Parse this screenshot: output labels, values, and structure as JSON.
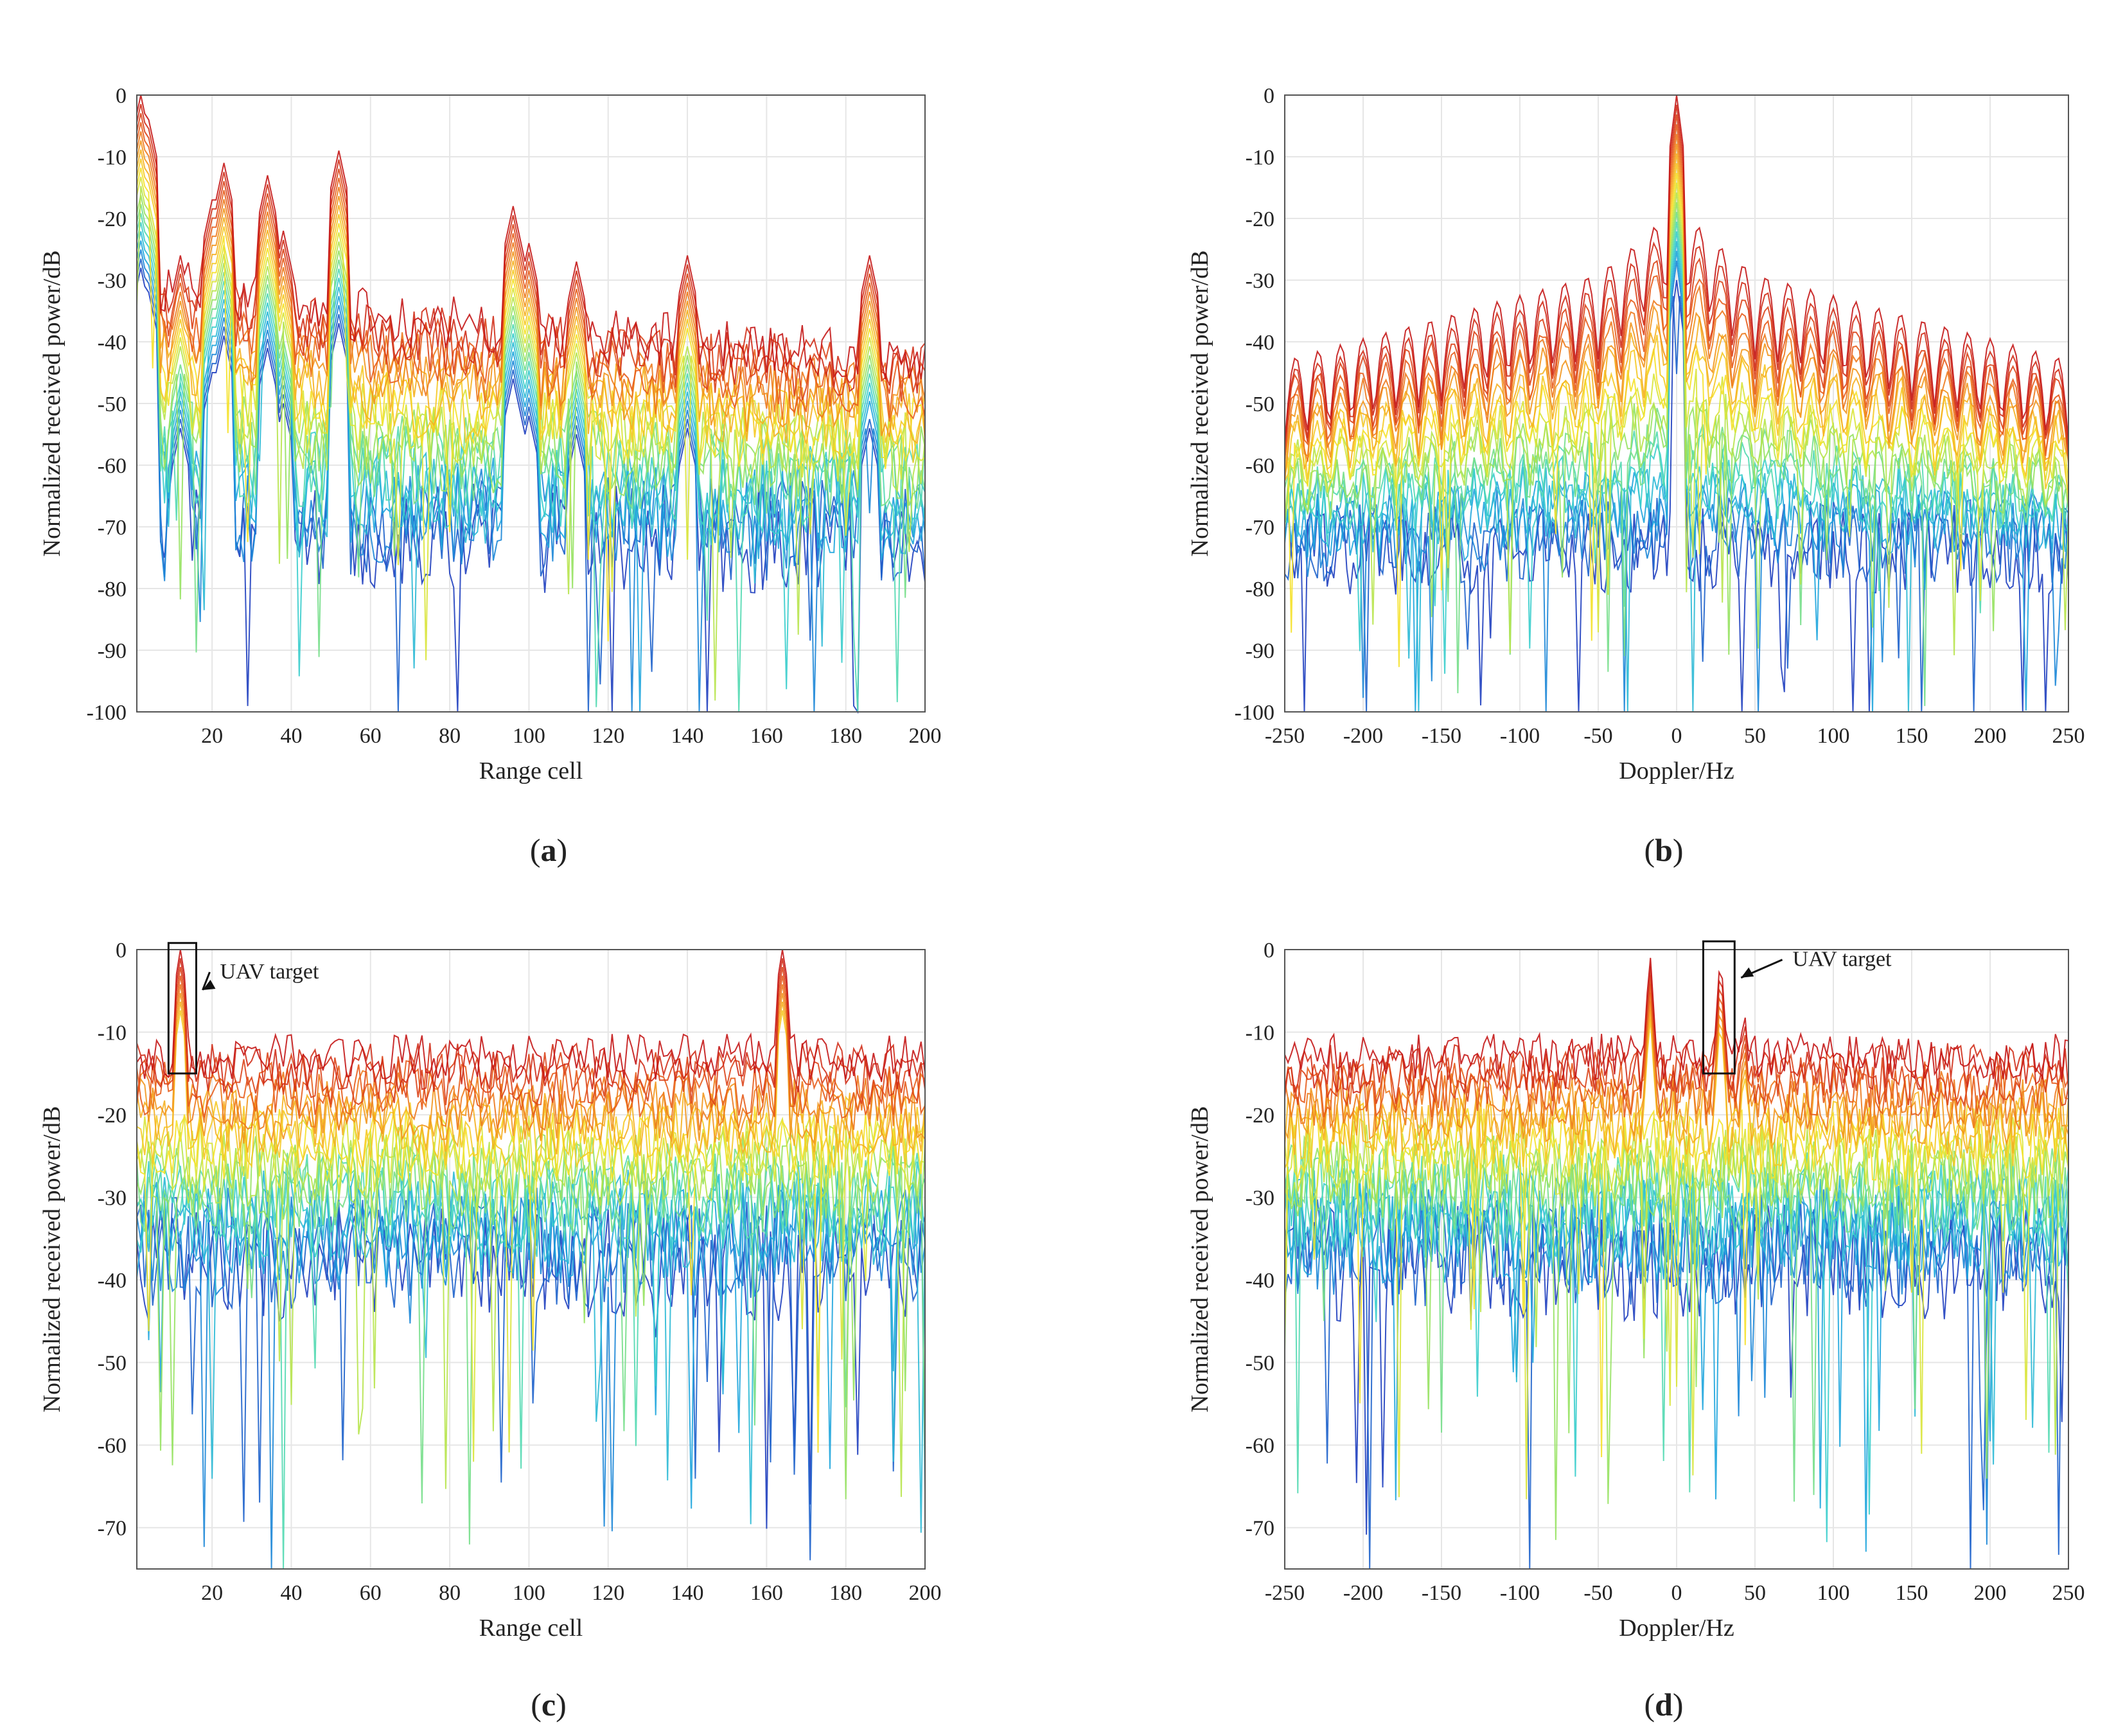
{
  "figure": {
    "panel_count": 4
  },
  "chart_data": [
    {
      "type": "line",
      "panel_label": "a",
      "xlabel": "Range cell",
      "ylabel": "Normalized received power/dB",
      "xlim": [
        1,
        200
      ],
      "ylim": [
        -100,
        0
      ],
      "xticks": [
        20,
        40,
        60,
        80,
        100,
        120,
        140,
        160,
        180,
        200
      ],
      "yticks": [
        0,
        -10,
        -20,
        -30,
        -40,
        -50,
        -60,
        -70,
        -80,
        -90,
        -100
      ],
      "series_count": 20,
      "noise_floor_db": -62,
      "noise_spread_db": 18,
      "peaks": [
        {
          "x": 2,
          "y": 0
        },
        {
          "x": 4,
          "y": -4
        },
        {
          "x": 12,
          "y": -26
        },
        {
          "x": 20,
          "y": -17
        },
        {
          "x": 23,
          "y": -11
        },
        {
          "x": 34,
          "y": -13
        },
        {
          "x": 38,
          "y": -22
        },
        {
          "x": 52,
          "y": -9
        },
        {
          "x": 96,
          "y": -18
        },
        {
          "x": 100,
          "y": -24
        },
        {
          "x": 112,
          "y": -27
        },
        {
          "x": 140,
          "y": -26
        },
        {
          "x": 186,
          "y": -26
        }
      ],
      "floor_profile": [
        [
          1,
          -30
        ],
        [
          60,
          -36
        ],
        [
          200,
          -43
        ]
      ],
      "colors": [
        "#1f3fbf",
        "#1a9fe0",
        "#3ed6c8",
        "#9be35a",
        "#f5e52a",
        "#f5a21d",
        "#e5541b",
        "#c41616"
      ]
    },
    {
      "type": "line",
      "panel_label": "b",
      "xlabel": "Doppler/Hz",
      "ylabel": "Normalized received power/dB",
      "xlim": [
        -250,
        250
      ],
      "ylim": [
        -100,
        0
      ],
      "xticks": [
        -250,
        -200,
        -150,
        -100,
        -50,
        0,
        50,
        100,
        150,
        200,
        250
      ],
      "yticks": [
        0,
        -10,
        -20,
        -30,
        -40,
        -50,
        -60,
        -70,
        -80,
        -90,
        -100
      ],
      "series_count": 20,
      "main_peak": {
        "x": 0,
        "y": 0
      },
      "sidelobe_spacing_hz": 14.3,
      "sidelobe_envelope": [
        [
          -250,
          -43
        ],
        [
          -50,
          -29
        ],
        [
          -25,
          -24
        ],
        [
          0,
          -18
        ],
        [
          25,
          -24
        ],
        [
          50,
          -29
        ],
        [
          250,
          -43
        ]
      ],
      "noise_floor_db": -60,
      "colors": [
        "#1f3fbf",
        "#1a9fe0",
        "#3ed6c8",
        "#9be35a",
        "#f5e52a",
        "#f5a21d",
        "#e5541b",
        "#c41616"
      ]
    },
    {
      "type": "line",
      "panel_label": "c",
      "xlabel": "Range cell",
      "ylabel": "Normalized received power/dB",
      "xlim": [
        1,
        200
      ],
      "ylim": [
        -75,
        0
      ],
      "xticks": [
        20,
        40,
        60,
        80,
        100,
        120,
        140,
        160,
        180,
        200
      ],
      "yticks": [
        0,
        -10,
        -20,
        -30,
        -40,
        -50,
        -60,
        -70
      ],
      "series_count": 20,
      "noise_floor_db": -28,
      "noise_spread_db": 14,
      "peaks": [
        {
          "x": 12,
          "y": 0
        },
        {
          "x": 164,
          "y": 0
        }
      ],
      "annotation": {
        "text": "UAV target",
        "box_x": [
          9,
          16
        ],
        "box_y": [
          -15,
          0.8
        ],
        "text_x": 22,
        "text_y": -3.5
      },
      "colors": [
        "#1f3fbf",
        "#1a9fe0",
        "#3ed6c8",
        "#9be35a",
        "#f5e52a",
        "#f5a21d",
        "#e5541b",
        "#c41616"
      ]
    },
    {
      "type": "line",
      "panel_label": "d",
      "xlabel": "Doppler/Hz",
      "ylabel": "Normalized received power/dB",
      "xlim": [
        -250,
        250
      ],
      "ylim": [
        -75,
        0
      ],
      "xticks": [
        -250,
        -200,
        -150,
        -100,
        -50,
        0,
        50,
        100,
        150,
        200,
        250
      ],
      "yticks": [
        0,
        -10,
        -20,
        -30,
        -40,
        -50,
        -60,
        -70
      ],
      "series_count": 20,
      "noise_floor_db": -28,
      "noise_spread_db": 14,
      "peaks": [
        {
          "x": -17,
          "y": 0
        },
        {
          "x": 28,
          "y": 0
        },
        {
          "x": 43,
          "y": -6
        }
      ],
      "annotation": {
        "text": "UAV target",
        "box_x": [
          17,
          37
        ],
        "box_y": [
          -15,
          1
        ],
        "text_x": 74,
        "text_y": -2
      },
      "colors": [
        "#1f3fbf",
        "#1a9fe0",
        "#3ed6c8",
        "#9be35a",
        "#f5e52a",
        "#f5a21d",
        "#e5541b",
        "#c41616"
      ]
    }
  ]
}
